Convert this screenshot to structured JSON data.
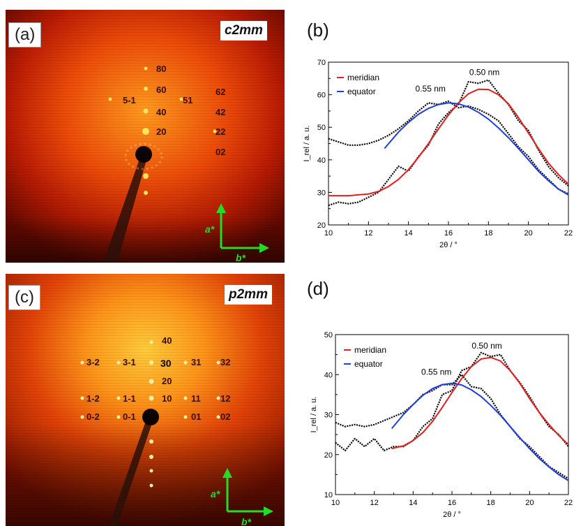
{
  "panel_a": {
    "label": "(a)",
    "group": "c2mm",
    "indices": [
      "80",
      "60",
      "40",
      "20",
      "5-1",
      "51",
      "62",
      "42",
      "22",
      "02"
    ],
    "axis_a": "a*",
    "axis_b": "b*"
  },
  "panel_c": {
    "label": "(c)",
    "group": "p2mm",
    "indices": [
      "40",
      "30",
      "20",
      "10",
      "3-2",
      "3-1",
      "31",
      "32",
      "1-2",
      "1-1",
      "11",
      "12",
      "0-2",
      "0-1",
      "01",
      "02"
    ],
    "axis_a": "a*",
    "axis_b": "b*"
  },
  "panel_b_label": "(b)",
  "panel_d_label": "(d)",
  "colors": {
    "meridian": "#e02020",
    "equator": "#1f3fd6",
    "data": "#000000",
    "arrow": "#22dd22"
  },
  "chart_data": [
    {
      "type": "line",
      "panel": "(b)",
      "xlabel": "2θ / °",
      "ylabel": "I_rel / a. u.",
      "xlim": [
        10,
        22
      ],
      "ylim": [
        20,
        70
      ],
      "xticks": [
        10,
        12,
        14,
        16,
        18,
        20,
        22
      ],
      "yticks": [
        20,
        30,
        40,
        50,
        60,
        70
      ],
      "legend": [
        "meridian",
        "equator"
      ],
      "legend_position": "top-left",
      "annotations": [
        {
          "text": "0.50 nm",
          "x": 17.8,
          "y": 66
        },
        {
          "text": "0.55 nm",
          "x": 15.1,
          "y": 61
        }
      ],
      "series": [
        {
          "name": "meridian",
          "style": "fit",
          "x": [
            10,
            11,
            12,
            12.5,
            13,
            13.5,
            14,
            14.5,
            15,
            15.5,
            16,
            16.5,
            17,
            17.5,
            18,
            18.5,
            19,
            19.5,
            20,
            20.5,
            21,
            21.5,
            22
          ],
          "y": [
            29,
            29,
            29.5,
            30.3,
            31.8,
            34,
            37,
            40.8,
            45,
            49.5,
            53.8,
            57.5,
            60.3,
            61.7,
            61.6,
            60,
            57.2,
            53,
            48.2,
            43.5,
            39,
            35.5,
            32.5
          ]
        },
        {
          "name": "equator",
          "style": "fit",
          "x": [
            12.8,
            13.5,
            14,
            14.5,
            15,
            15.5,
            16,
            16.5,
            17,
            17.5,
            18,
            18.5,
            19,
            19.5,
            20,
            20.5,
            21,
            21.5,
            22
          ],
          "y": [
            43.5,
            48.5,
            51.5,
            54,
            55.8,
            57,
            57.5,
            57.2,
            56.2,
            54.6,
            52.5,
            49.8,
            46.8,
            43.5,
            40,
            36.5,
            33.6,
            31,
            29.2
          ]
        },
        {
          "name": "meridian data",
          "style": "data",
          "x": [
            10,
            10.5,
            11,
            11.5,
            12,
            12.5,
            13,
            13.5,
            14,
            14.5,
            15,
            15.5,
            16,
            16.5,
            17,
            17.5,
            18,
            18.5,
            19,
            19.5,
            20,
            20.5,
            21,
            21.5,
            22
          ],
          "y": [
            26,
            27,
            26.5,
            27,
            28.5,
            30,
            34,
            38,
            36.5,
            41,
            44.5,
            51,
            54.5,
            57,
            64,
            63.5,
            64.5,
            60.5,
            57,
            52,
            49,
            43,
            38,
            34.5,
            32
          ]
        },
        {
          "name": "equator data",
          "style": "data",
          "x": [
            10,
            10.5,
            11,
            11.5,
            12,
            12.5,
            13,
            13.5,
            14,
            14.5,
            15,
            15.5,
            16,
            16.5,
            17,
            17.5,
            18,
            18.5,
            19,
            19.5,
            20,
            20.5,
            21,
            21.5,
            22
          ],
          "y": [
            46.5,
            45.5,
            44.5,
            44.5,
            45,
            46,
            47.5,
            49.5,
            52,
            55,
            57.5,
            57,
            58,
            56,
            56.5,
            55.5,
            54,
            52,
            48,
            44,
            41,
            37,
            34,
            31,
            29.5
          ]
        }
      ]
    },
    {
      "type": "line",
      "panel": "(d)",
      "xlabel": "2θ / °",
      "ylabel": "I_rel / a. u.",
      "xlim": [
        10,
        22
      ],
      "ylim": [
        10,
        50
      ],
      "xticks": [
        10,
        12,
        14,
        16,
        18,
        20,
        22
      ],
      "yticks": [
        10,
        20,
        30,
        40,
        50
      ],
      "legend": [
        "meridian",
        "equator"
      ],
      "legend_position": "top-left",
      "annotations": [
        {
          "text": "0.50 nm",
          "x": 17.8,
          "y": 46.5
        },
        {
          "text": "0.55 nm",
          "x": 15.2,
          "y": 40
        }
      ],
      "series": [
        {
          "name": "meridian",
          "style": "fit",
          "x": [
            12.9,
            13.5,
            14,
            14.5,
            15,
            15.5,
            16,
            16.5,
            17,
            17.5,
            18,
            18.5,
            19,
            19.5,
            20,
            20.5,
            21,
            21.5,
            22
          ],
          "y": [
            21.5,
            22.2,
            23.5,
            25.5,
            28.3,
            31.8,
            35.5,
            39,
            42,
            43.9,
            44.3,
            43.4,
            41,
            37.8,
            34,
            30.5,
            27.5,
            24.8,
            22.5
          ]
        },
        {
          "name": "equator",
          "style": "fit",
          "x": [
            12.9,
            13.5,
            14,
            14.5,
            15,
            15.5,
            16,
            16.5,
            17,
            17.5,
            18,
            18.5,
            19,
            19.5,
            20,
            20.5,
            21,
            21.5,
            22
          ],
          "y": [
            26.5,
            30,
            32.5,
            34.8,
            36.5,
            37.5,
            37.8,
            37.4,
            36.2,
            34.5,
            32.3,
            29.8,
            27,
            24.2,
            21.5,
            19,
            16.9,
            15,
            13.5
          ]
        },
        {
          "name": "meridian data",
          "style": "data",
          "x": [
            10,
            10.5,
            11,
            11.5,
            12,
            12.5,
            13,
            13.5,
            14,
            14.5,
            15,
            15.5,
            16,
            16.5,
            17,
            17.5,
            18,
            18.5,
            19,
            19.5,
            20,
            20.5,
            21,
            21.5,
            22
          ],
          "y": [
            23,
            21,
            24,
            22,
            24,
            21,
            22,
            22,
            23.5,
            27,
            29,
            35,
            36,
            41,
            42,
            45.5,
            44.5,
            45,
            41,
            38,
            34.5,
            30.5,
            27,
            25,
            22
          ]
        },
        {
          "name": "equator data",
          "style": "data",
          "x": [
            10,
            10.5,
            11,
            11.5,
            12,
            12.5,
            13,
            13.5,
            14,
            14.5,
            15,
            15.5,
            16,
            16.5,
            17,
            17.5,
            18,
            18.5,
            19,
            19.5,
            20,
            20.5,
            21,
            21.5,
            22
          ],
          "y": [
            28,
            27,
            27.5,
            27,
            27.5,
            28.5,
            29.5,
            30.5,
            32.5,
            35,
            36,
            37.5,
            37.5,
            40,
            37,
            36.5,
            34,
            30,
            27,
            24,
            22,
            19.5,
            17,
            15.5,
            14
          ]
        }
      ]
    }
  ]
}
